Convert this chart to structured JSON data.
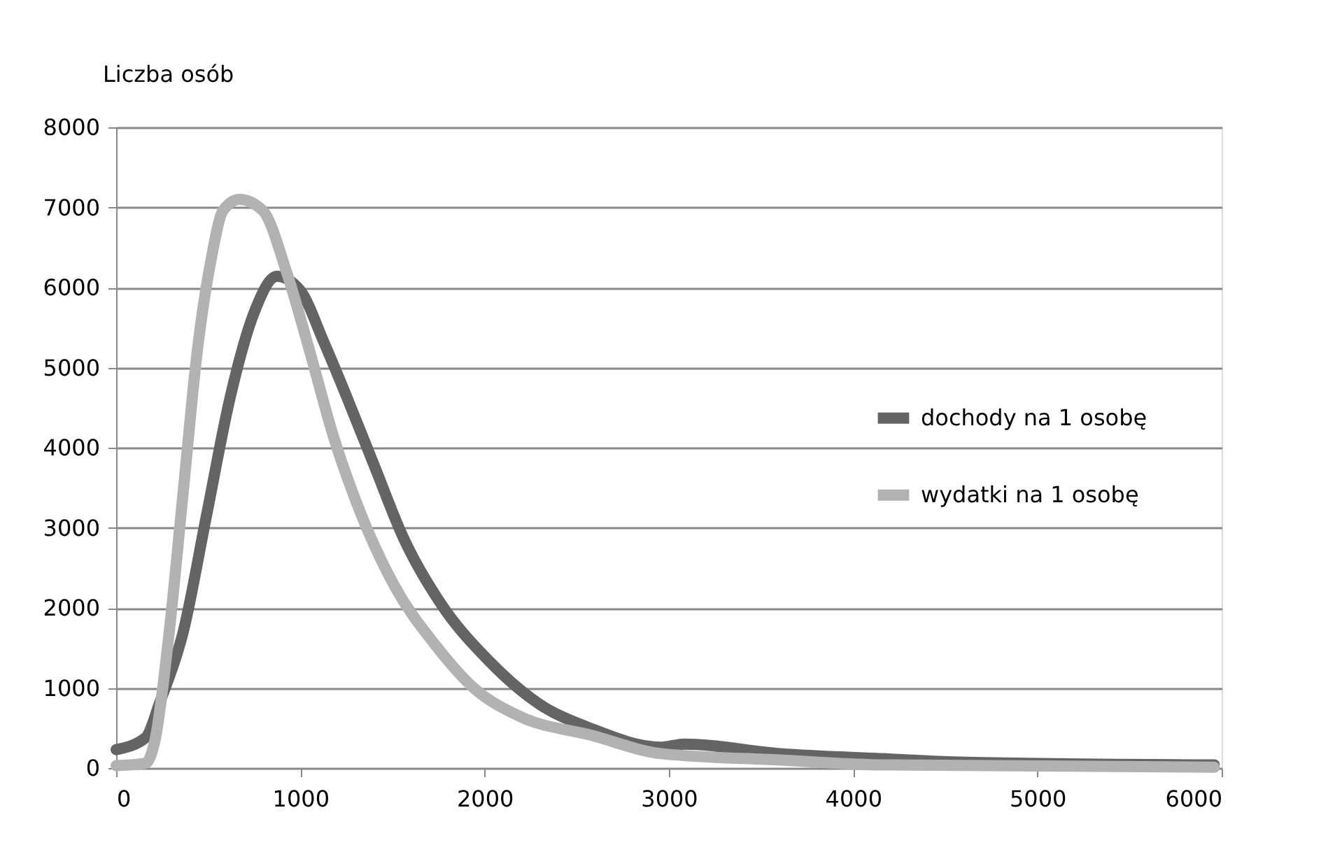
{
  "chart_data": {
    "type": "line",
    "ylabel": "Liczba osób",
    "xlim": [
      0,
      6000
    ],
    "xticks": [
      0,
      1000,
      2000,
      3000,
      4000,
      5000,
      6000
    ],
    "ylim": [
      0,
      8000
    ],
    "yticks": [
      0,
      1000,
      2000,
      3000,
      4000,
      5000,
      6000,
      7000,
      8000
    ],
    "grid": "y",
    "legend": "right",
    "marker": "none",
    "line_style": "solid",
    "series": [
      {
        "name": "dochody na 1 osobę",
        "color": "#646464",
        "x": [
          0,
          160,
          237,
          364,
          491,
          618,
          746,
          873,
          1000,
          1127,
          1254,
          1407,
          1560,
          1763,
          2018,
          2323,
          2560,
          2959,
          3083,
          3607,
          4130,
          4654,
          5960
        ],
        "values": [
          230,
          380,
          820,
          1700,
          3160,
          4620,
          5670,
          6140,
          5960,
          5320,
          4620,
          3740,
          2870,
          2050,
          1350,
          760,
          510,
          260,
          300,
          180,
          120,
          70,
          40
        ]
      },
      {
        "name": "wydatki na 1 osobę",
        "color": "#b2b2b2",
        "x": [
          0,
          160,
          211,
          288,
          364,
          440,
          517,
          580,
          669,
          796,
          924,
          1051,
          1178,
          1331,
          1509,
          1738,
          1941,
          2196,
          2578,
          2959,
          3607,
          4130,
          5960
        ],
        "values": [
          30,
          60,
          350,
          1700,
          3450,
          5200,
          6370,
          6960,
          7100,
          6960,
          6200,
          5200,
          4150,
          3160,
          2280,
          1520,
          1000,
          640,
          410,
          180,
          100,
          40,
          10
        ]
      }
    ]
  }
}
